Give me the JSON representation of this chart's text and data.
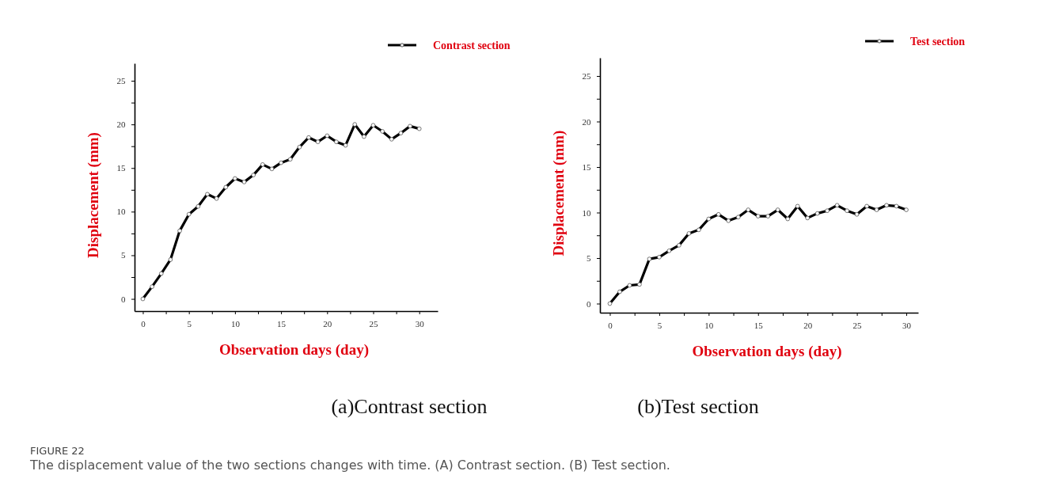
{
  "chart_data": [
    {
      "type": "line",
      "xlabel": "Observation days (day)",
      "ylabel": "Displacement (mm)",
      "x": [
        0,
        1,
        2,
        3,
        4,
        5,
        6,
        7,
        8,
        9,
        10,
        11,
        12,
        13,
        14,
        15,
        16,
        17,
        18,
        19,
        20,
        21,
        22,
        23,
        24,
        25,
        26,
        27,
        28,
        29,
        30
      ],
      "series": [
        {
          "name": "Contrast section",
          "color": "#000000",
          "values": [
            0,
            1.4,
            2.9,
            4.5,
            7.8,
            9.7,
            10.6,
            12.0,
            11.5,
            12.8,
            13.8,
            13.4,
            14.2,
            15.4,
            14.9,
            15.6,
            16.0,
            17.4,
            18.5,
            18.0,
            18.7,
            18.0,
            17.6,
            20.0,
            18.6,
            19.9,
            19.2,
            18.3,
            19.0,
            19.8,
            19.5
          ]
        }
      ],
      "xlim": [
        -0.9,
        32
      ],
      "ylim": [
        -1.4,
        27
      ],
      "xticks": [
        0,
        {
          "value": 2.5,
          "label": null
        },
        5,
        {
          "value": 7.5,
          "label": null
        },
        10,
        {
          "value": 12.5,
          "label": null
        },
        15,
        {
          "value": 17.5,
          "label": null
        },
        20,
        {
          "value": 22.5,
          "label": null
        },
        25,
        {
          "value": 27.5,
          "label": null
        },
        30
      ],
      "yticks": [
        0,
        {
          "value": 2.5,
          "label": null
        },
        5,
        {
          "value": 7.5,
          "label": null
        },
        10,
        {
          "value": 12.5,
          "label": null
        },
        15,
        {
          "value": 17.5,
          "label": null
        },
        20,
        {
          "value": 22.5,
          "label": null
        },
        25
      ],
      "marker": "circle",
      "line_style": "solid",
      "grid": false,
      "legend": "top right",
      "annotations": [
        "(a)Contrast section",
        "FIGURE 22",
        "The displacement value of the two sections changes with time. (A) Contrast section. (B) Test section."
      ]
    },
    {
      "type": "line",
      "xlabel": "Observation days (day)",
      "ylabel": "Displacement (mm)",
      "x": [
        0,
        1,
        2,
        3,
        4,
        5,
        6,
        7,
        8,
        9,
        10,
        11,
        12,
        13,
        14,
        15,
        16,
        17,
        18,
        19,
        20,
        21,
        22,
        23,
        24,
        25,
        26,
        27,
        28,
        29,
        30
      ],
      "series": [
        {
          "name": "Test section",
          "color": "#000000",
          "values": [
            0,
            1.3,
            2.0,
            2.1,
            4.9,
            5.1,
            5.8,
            6.4,
            7.7,
            8.1,
            9.3,
            9.8,
            9.1,
            9.5,
            10.3,
            9.6,
            9.6,
            10.3,
            9.3,
            10.7,
            9.4,
            9.9,
            10.2,
            10.8,
            10.2,
            9.8,
            10.7,
            10.3,
            10.8,
            10.7,
            10.3
          ]
        }
      ],
      "xlim": [
        -1,
        31.2
      ],
      "ylim": [
        -1,
        27
      ],
      "xticks": [
        0,
        {
          "value": 2.5,
          "label": null
        },
        5,
        {
          "value": 7.5,
          "label": null
        },
        10,
        {
          "value": 12.5,
          "label": null
        },
        15,
        {
          "value": 17.5,
          "label": null
        },
        20,
        {
          "value": 22.5,
          "label": null
        },
        25,
        {
          "value": 27.5,
          "label": null
        },
        30
      ],
      "yticks": [
        0,
        {
          "value": 2.5,
          "label": null
        },
        5,
        {
          "value": 7.5,
          "label": null
        },
        10,
        {
          "value": 12.5,
          "label": null
        },
        15,
        {
          "value": 17.5,
          "label": null
        },
        20,
        {
          "value": 22.5,
          "label": null
        },
        25
      ],
      "marker": "circle",
      "line_style": "solid",
      "grid": false,
      "legend": "top right",
      "annotations": [
        "(b)Test section"
      ]
    }
  ]
}
